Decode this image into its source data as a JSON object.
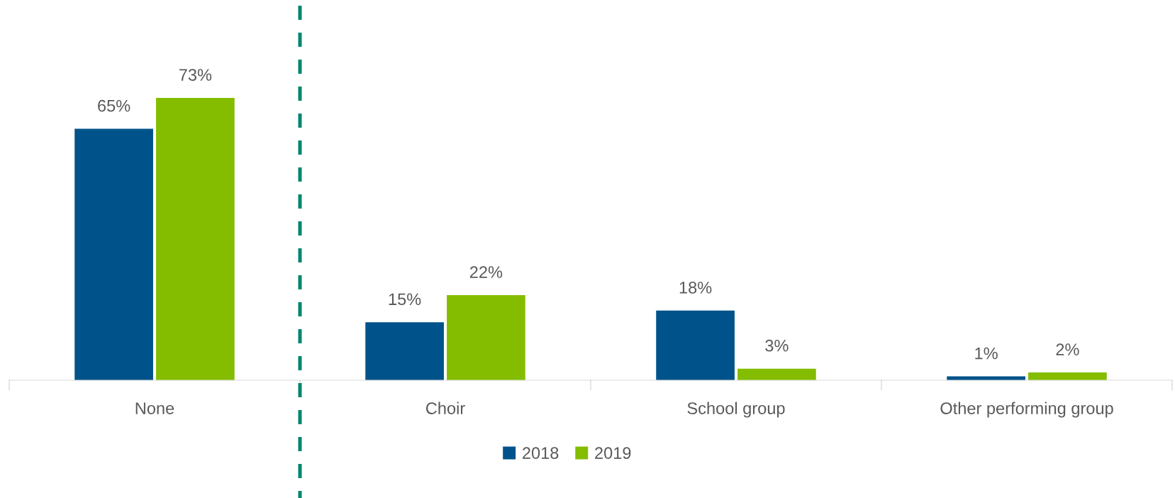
{
  "chart_data": {
    "type": "bar",
    "categories": [
      "None",
      "Choir",
      "School group",
      "Other performing group"
    ],
    "series": [
      {
        "name": "2018",
        "color": "#00538a",
        "values": [
          65,
          15,
          18,
          1
        ],
        "value_labels": [
          "65%",
          "15%",
          "18%",
          "1%"
        ]
      },
      {
        "name": "2019",
        "color": "#84bd00",
        "values": [
          73,
          22,
          3,
          2
        ],
        "value_labels": [
          "73%",
          "22%",
          "3%",
          "2%"
        ]
      }
    ],
    "legend": "bottom",
    "grid": false
  }
}
